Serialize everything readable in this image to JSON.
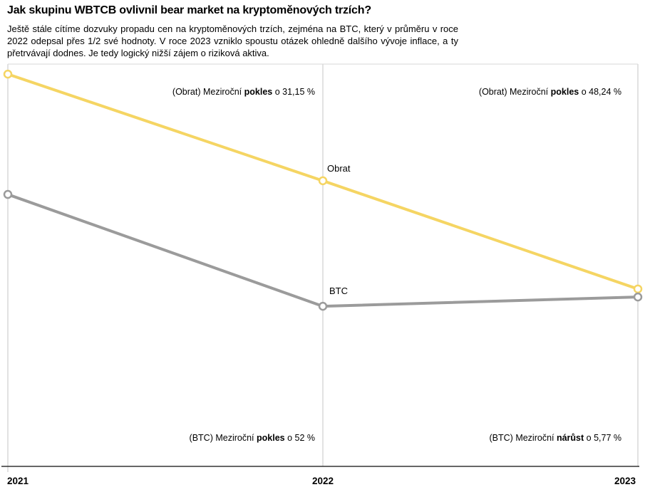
{
  "page": {
    "title": "Jak skupinu WBTCB ovlivnil bear market na kryptoměnových trzích?",
    "description": "Ještě stále cítíme dozvuky propadu cen na kryptoměnových trzích, zejména na BTC, který v průměru v roce 2022 odepsal přes 1/2 své hodnoty. V roce 2023 vzniklo spoustu otázek ohledně dalšího vývoje inflace, a ty přetrvávají dodnes. Je tedy logický nižší zájem o riziková aktiva."
  },
  "colors": {
    "obrat_line": "#F5D563",
    "btc_line": "#9B9B9B",
    "gridline": "#D9D9D9",
    "top_border": "#EBEBEB",
    "axis": "#333333",
    "marker_fill": "#FFFFFF",
    "text": "#000000"
  },
  "chart_data": {
    "type": "line",
    "categories": [
      "2021",
      "2022",
      "2023"
    ],
    "series": [
      {
        "name": "Obrat",
        "color_key": "obrat_line",
        "values": [
          97.5,
          71.0,
          44.1
        ],
        "yoy_change_pct": [
          -31.15,
          -48.24
        ]
      },
      {
        "name": "BTC",
        "color_key": "btc_line",
        "values": [
          67.6,
          39.8,
          42.1
        ],
        "yoy_change_pct": [
          -52.0,
          5.77
        ]
      }
    ],
    "values_unit": "relative index (estimated from plot, % of chart height)",
    "ylim": [
      0,
      100
    ],
    "grid": "vertical category gridlines only",
    "legend_position": "inline labels near 2022 points",
    "annotations": [
      {
        "prefix": "(Obrat) Meziroční ",
        "bold": "pokles",
        "suffix": " o 31,15 %"
      },
      {
        "prefix": "(Obrat) Meziroční ",
        "bold": "pokles",
        "suffix": " o 48,24 %"
      },
      {
        "prefix": "(BTC) Meziroční ",
        "bold": "pokles",
        "suffix": " o 52 %"
      },
      {
        "prefix": "(BTC) Meziroční ",
        "bold": "nárůst",
        "suffix": " o 5,77 %"
      }
    ]
  }
}
